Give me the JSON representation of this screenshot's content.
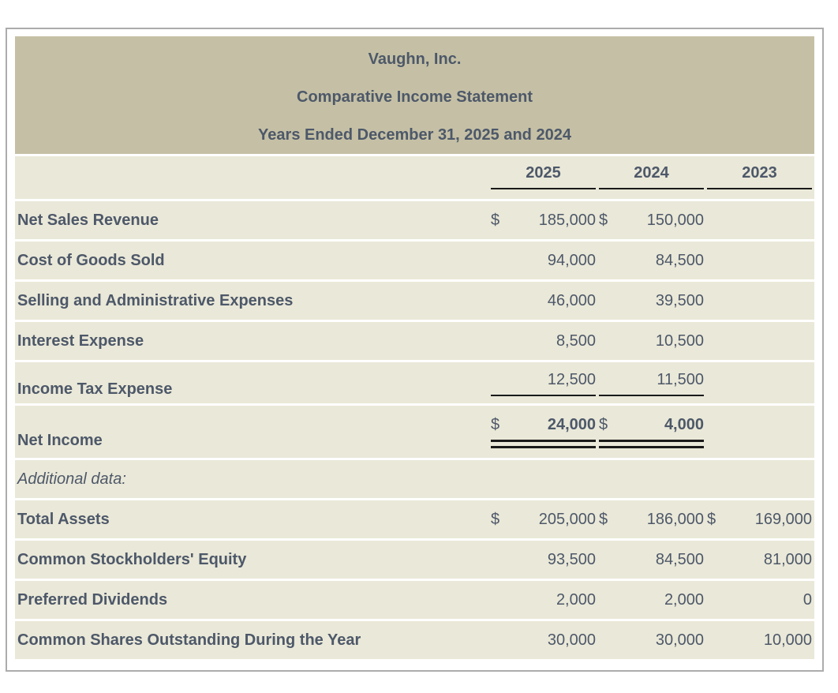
{
  "statement": {
    "title_lines": [
      "Vaughn, Inc.",
      "Comparative Income Statement",
      "Years Ended December 31, 2025 and 2024"
    ],
    "columns": [
      "2025",
      "2024",
      "2023"
    ],
    "rows": [
      {
        "label": "Net Sales Revenue",
        "c1d": "$",
        "c1": "185,000",
        "c2d": "$",
        "c2": "150,000"
      },
      {
        "label": "Cost of Goods Sold",
        "c1": "94,000",
        "c2": "84,500"
      },
      {
        "label": "Selling and Administrative Expenses",
        "c1": "46,000",
        "c2": "39,500"
      },
      {
        "label": "Interest Expense",
        "c1": "8,500",
        "c2": "10,500"
      },
      {
        "label": "Income Tax Expense",
        "c1": "12,500",
        "c2": "11,500"
      },
      {
        "label": "Net Income",
        "c1d": "$",
        "c1": "24,000",
        "c2d": "$",
        "c2": "4,000"
      },
      {
        "label": "Additional data:"
      },
      {
        "label": "Total Assets",
        "c1d": "$",
        "c1": "205,000",
        "c2d": "$",
        "c2": "186,000",
        "c3d": "$",
        "c3": "169,000"
      },
      {
        "label": "Common Stockholders' Equity",
        "c1": "93,500",
        "c2": "84,500",
        "c3": "81,000"
      },
      {
        "label": "Preferred Dividends",
        "c1": "2,000",
        "c2": "2,000",
        "c3": "0"
      },
      {
        "label": "Common Shares Outstanding During the Year",
        "c1": "30,000",
        "c2": "30,000",
        "c3": "10,000"
      }
    ],
    "colors": {
      "header_band": "#C5C0A5",
      "row_band": "#EAE8D8",
      "text": "#4D5869",
      "rule": "#1A1A1A",
      "frame_border": "#ACACAC"
    }
  }
}
